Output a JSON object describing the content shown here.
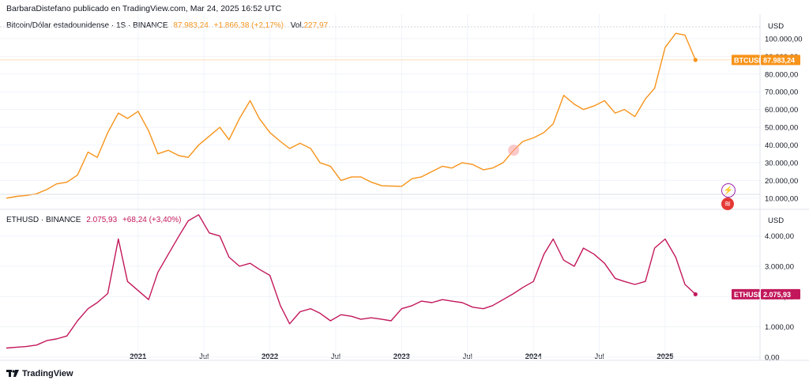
{
  "header": {
    "publisher": "BarbaraDistefano publicado en TradingView.com, Mar 24, 2025 16:52 UTC"
  },
  "btc_legend": {
    "symbol": "Bitcoin/Dólar estadounidense · 1S · BINANCE",
    "price": "87.983,24",
    "change": "+1.866,38 (+2,17%)",
    "vol_label": "Vol.",
    "vol_value": "227,97"
  },
  "eth_legend": {
    "symbol": "ETHUSD · BINANCE",
    "price": "2.075,93",
    "change": "+68,24 (+3,40%)"
  },
  "footer": {
    "brand": "TradingView"
  },
  "colors": {
    "btc": "#f7931a",
    "eth": "#c2185b",
    "grid": "#f0f3fa",
    "axis_text": "#131722"
  },
  "icons": [
    "flash-icon",
    "flag-icon",
    "tradingview-logo-icon"
  ],
  "chart_data": [
    {
      "type": "line",
      "title": "Bitcoin/Dólar estadounidense",
      "ylabel": "USD",
      "ylim": [
        5000,
        112000
      ],
      "y_ticks": [
        10000,
        20000,
        30000,
        40000,
        50000,
        60000,
        70000,
        80000,
        90000,
        100000
      ],
      "y_tick_labels": [
        "10.000,00",
        "20.000,00",
        "30.000,00",
        "40.000,00",
        "50.000,00",
        "60.000,00",
        "70.000,00",
        "80.000,00",
        "90.000,00",
        "100.000,00"
      ],
      "last_label": "BTCUSD",
      "last_value": 87983.24,
      "last_value_label": "87.983,24",
      "series": [
        {
          "name": "BTCUSD",
          "x": [
            2020.0,
            2020.08,
            2020.15,
            2020.23,
            2020.31,
            2020.38,
            2020.46,
            2020.54,
            2020.62,
            2020.69,
            2020.77,
            2020.85,
            2020.92,
            2021.0,
            2021.08,
            2021.15,
            2021.23,
            2021.31,
            2021.38,
            2021.46,
            2021.54,
            2021.62,
            2021.69,
            2021.77,
            2021.85,
            2021.92,
            2022.0,
            2022.08,
            2022.15,
            2022.23,
            2022.31,
            2022.38,
            2022.46,
            2022.54,
            2022.62,
            2022.69,
            2022.77,
            2022.85,
            2022.92,
            2023.0,
            2023.08,
            2023.15,
            2023.23,
            2023.31,
            2023.38,
            2023.46,
            2023.54,
            2023.62,
            2023.69,
            2023.77,
            2023.85,
            2023.92,
            2024.0,
            2024.08,
            2024.15,
            2024.23,
            2024.31,
            2024.38,
            2024.46,
            2024.54,
            2024.62,
            2024.69,
            2024.77,
            2024.85,
            2024.92,
            2025.0,
            2025.08,
            2025.15,
            2025.23
          ],
          "values": [
            10000,
            11000,
            11500,
            12500,
            15000,
            18000,
            19000,
            23000,
            36000,
            33000,
            47000,
            58000,
            55000,
            59000,
            48000,
            35000,
            37000,
            34000,
            33000,
            40000,
            45000,
            50000,
            43000,
            55000,
            65000,
            55000,
            47000,
            42000,
            38000,
            41000,
            38000,
            30000,
            28000,
            20000,
            22000,
            22000,
            19000,
            17000,
            16800,
            16700,
            21000,
            22000,
            25000,
            28000,
            27000,
            30000,
            29000,
            26000,
            27000,
            30000,
            37000,
            42000,
            44000,
            47000,
            52000,
            68000,
            63000,
            60000,
            62000,
            65000,
            58000,
            60000,
            56000,
            66000,
            72000,
            95000,
            103000,
            102000,
            87983
          ]
        }
      ]
    },
    {
      "type": "line",
      "title": "ETHUSD",
      "ylabel": "USD",
      "ylim": [
        0,
        4800
      ],
      "y_ticks": [
        0,
        1000,
        2000,
        3000,
        4000
      ],
      "y_tick_labels": [
        "0,00",
        "1.000,00",
        "2.000,00",
        "3.000,00",
        "4.000,00"
      ],
      "x_ticks": [
        2021.0,
        2021.5,
        2022.0,
        2022.5,
        2023.0,
        2023.5,
        2024.0,
        2024.5,
        2025.0
      ],
      "x_tick_labels": [
        "2021",
        "Jul",
        "2022",
        "Jul",
        "2023",
        "Jul",
        "2024",
        "Jul",
        "2025"
      ],
      "last_label": "ETHUSD",
      "last_value": 2075.93,
      "last_value_label": "2.075,93",
      "series": [
        {
          "name": "ETHUSD",
          "x": [
            2020.0,
            2020.08,
            2020.15,
            2020.23,
            2020.31,
            2020.38,
            2020.46,
            2020.54,
            2020.62,
            2020.69,
            2020.77,
            2020.85,
            2020.92,
            2021.0,
            2021.08,
            2021.15,
            2021.23,
            2021.31,
            2021.38,
            2021.46,
            2021.54,
            2021.62,
            2021.69,
            2021.77,
            2021.85,
            2021.92,
            2022.0,
            2022.08,
            2022.15,
            2022.23,
            2022.31,
            2022.38,
            2022.46,
            2022.54,
            2022.62,
            2022.69,
            2022.77,
            2022.85,
            2022.92,
            2023.0,
            2023.08,
            2023.15,
            2023.23,
            2023.31,
            2023.38,
            2023.46,
            2023.54,
            2023.62,
            2023.69,
            2023.77,
            2023.85,
            2023.92,
            2024.0,
            2024.08,
            2024.15,
            2024.23,
            2024.31,
            2024.38,
            2024.46,
            2024.54,
            2024.62,
            2024.69,
            2024.77,
            2024.85,
            2024.92,
            2025.0,
            2025.08,
            2025.15,
            2025.23
          ],
          "values": [
            300,
            330,
            350,
            400,
            550,
            600,
            700,
            1200,
            1600,
            1800,
            2100,
            3900,
            2500,
            2200,
            1900,
            2800,
            3400,
            4000,
            4500,
            4700,
            4100,
            4000,
            3300,
            3000,
            3100,
            2900,
            2700,
            1700,
            1100,
            1500,
            1600,
            1450,
            1200,
            1400,
            1350,
            1250,
            1300,
            1250,
            1200,
            1600,
            1700,
            1850,
            1800,
            1900,
            1850,
            1800,
            1650,
            1600,
            1700,
            1900,
            2100,
            2300,
            2500,
            3400,
            3900,
            3200,
            3000,
            3600,
            3400,
            3100,
            2600,
            2500,
            2400,
            2500,
            3600,
            3900,
            3300,
            2400,
            2076
          ]
        }
      ]
    }
  ]
}
